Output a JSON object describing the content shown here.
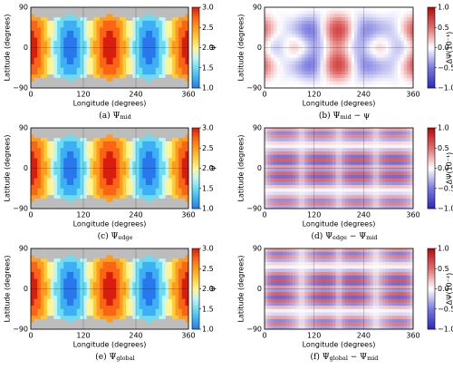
{
  "chart_data": [
    {
      "type": "contour",
      "colormap": "sequential",
      "x_label": "Longitude (degrees)",
      "y_label": "Latitude (degrees)",
      "xlim": [
        0,
        360
      ],
      "xticks": [
        0,
        120,
        240,
        360
      ],
      "ylim": [
        -90,
        90
      ],
      "yticks": [
        {
          "value": -90,
          "label": "−90"
        },
        0,
        90
      ],
      "colorbar": {
        "label": "Ψ",
        "lim": [
          1,
          3
        ],
        "ticks": [
          {
            "value": 1,
            "label": "1.0"
          },
          {
            "value": 1.5,
            "label": "1.5"
          },
          {
            "value": 2,
            "label": "2.0"
          },
          {
            "value": 2.5,
            "label": "2.5"
          },
          {
            "value": 3,
            "label": "3.0"
          }
        ]
      },
      "caption_parts": [
        "(a) Ψ",
        "mid"
      ]
    },
    {
      "type": "contour",
      "colormap": "diverging",
      "x_label": "Longitude (degrees)",
      "y_label": "Latitude (degrees)",
      "xlim": [
        0,
        360
      ],
      "xticks": [
        0,
        120,
        240,
        360
      ],
      "ylim": [
        -90,
        90
      ],
      "yticks": [
        {
          "value": -90,
          "label": "−90"
        },
        0,
        90
      ],
      "colorbar": {
        "label": "ΔΨ(10⁻¹)",
        "lim": [
          -1,
          1
        ],
        "ticks": [
          {
            "value": -1,
            "label": "−1.0"
          },
          {
            "value": -0.5,
            "label": "−0.5"
          },
          {
            "value": 0,
            "label": "0.0"
          },
          {
            "value": 0.5,
            "label": "0.5"
          },
          {
            "value": 1,
            "label": "1.0"
          }
        ]
      },
      "caption_parts": [
        "(b) Ψ",
        "mid",
        " − ψ"
      ]
    },
    {
      "type": "contour",
      "colormap": "sequential",
      "x_label": "Longitude (degrees)",
      "y_label": "Latitude (degrees)",
      "xlim": [
        0,
        360
      ],
      "xticks": [
        0,
        120,
        240,
        360
      ],
      "ylim": [
        -90,
        90
      ],
      "yticks": [
        {
          "value": -90,
          "label": "−90"
        },
        0,
        90
      ],
      "colorbar": {
        "label": "Ψ",
        "lim": [
          1,
          3
        ],
        "ticks": [
          {
            "value": 1,
            "label": "1.0"
          },
          {
            "value": 1.5,
            "label": "1.5"
          },
          {
            "value": 2,
            "label": "2.0"
          },
          {
            "value": 2.5,
            "label": "2.5"
          },
          {
            "value": 3,
            "label": "3.0"
          }
        ]
      },
      "caption_parts": [
        "(c) Ψ",
        "edge"
      ]
    },
    {
      "type": "contour",
      "colormap": "diverging",
      "x_label": "Longitude (degrees)",
      "y_label": "Latitude (degrees)",
      "xlim": [
        0,
        360
      ],
      "xticks": [
        0,
        120,
        240,
        360
      ],
      "ylim": [
        -90,
        90
      ],
      "yticks": [
        {
          "value": -90,
          "label": "−90"
        },
        0,
        90
      ],
      "colorbar": {
        "label": "ΔΨ(10⁻¹)",
        "lim": [
          -1,
          1
        ],
        "ticks": [
          {
            "value": -1,
            "label": "−1.0"
          },
          {
            "value": -0.5,
            "label": "−0.5"
          },
          {
            "value": 0,
            "label": "0.0"
          },
          {
            "value": 0.5,
            "label": "0.5"
          },
          {
            "value": 1,
            "label": "1.0"
          }
        ]
      },
      "caption_parts": [
        "(d) Ψ",
        "edge",
        " − Ψ",
        "mid"
      ]
    },
    {
      "type": "contour",
      "colormap": "sequential",
      "x_label": "Longitude (degrees)",
      "y_label": "Latitude (degrees)",
      "xlim": [
        0,
        360
      ],
      "xticks": [
        0,
        120,
        240,
        360
      ],
      "ylim": [
        -90,
        90
      ],
      "yticks": [
        {
          "value": -90,
          "label": "−90"
        },
        0,
        90
      ],
      "colorbar": {
        "label": "Ψ",
        "lim": [
          1,
          3
        ],
        "ticks": [
          {
            "value": 1,
            "label": "1.0"
          },
          {
            "value": 1.5,
            "label": "1.5"
          },
          {
            "value": 2,
            "label": "2.0"
          },
          {
            "value": 2.5,
            "label": "2.5"
          },
          {
            "value": 3,
            "label": "3.0"
          }
        ]
      },
      "caption_parts": [
        "(e) Ψ",
        "global"
      ]
    },
    {
      "type": "contour",
      "colormap": "diverging",
      "x_label": "Longitude (degrees)",
      "y_label": "Latitude (degrees)",
      "xlim": [
        0,
        360
      ],
      "xticks": [
        0,
        120,
        240,
        360
      ],
      "ylim": [
        -90,
        90
      ],
      "yticks": [
        {
          "value": -90,
          "label": "−90"
        },
        0,
        90
      ],
      "colorbar": {
        "label": "ΔΨ(10⁻²)",
        "lim": [
          -1,
          1
        ],
        "ticks": [
          {
            "value": -1,
            "label": "−1.0"
          },
          {
            "value": -0.5,
            "label": "−0.5"
          },
          {
            "value": 0,
            "label": "0.0"
          },
          {
            "value": 0.5,
            "label": "0.5"
          },
          {
            "value": 1,
            "label": "1.0"
          }
        ]
      },
      "caption_parts": [
        "(f) Ψ",
        "global",
        " − Ψ",
        "mid"
      ]
    }
  ]
}
